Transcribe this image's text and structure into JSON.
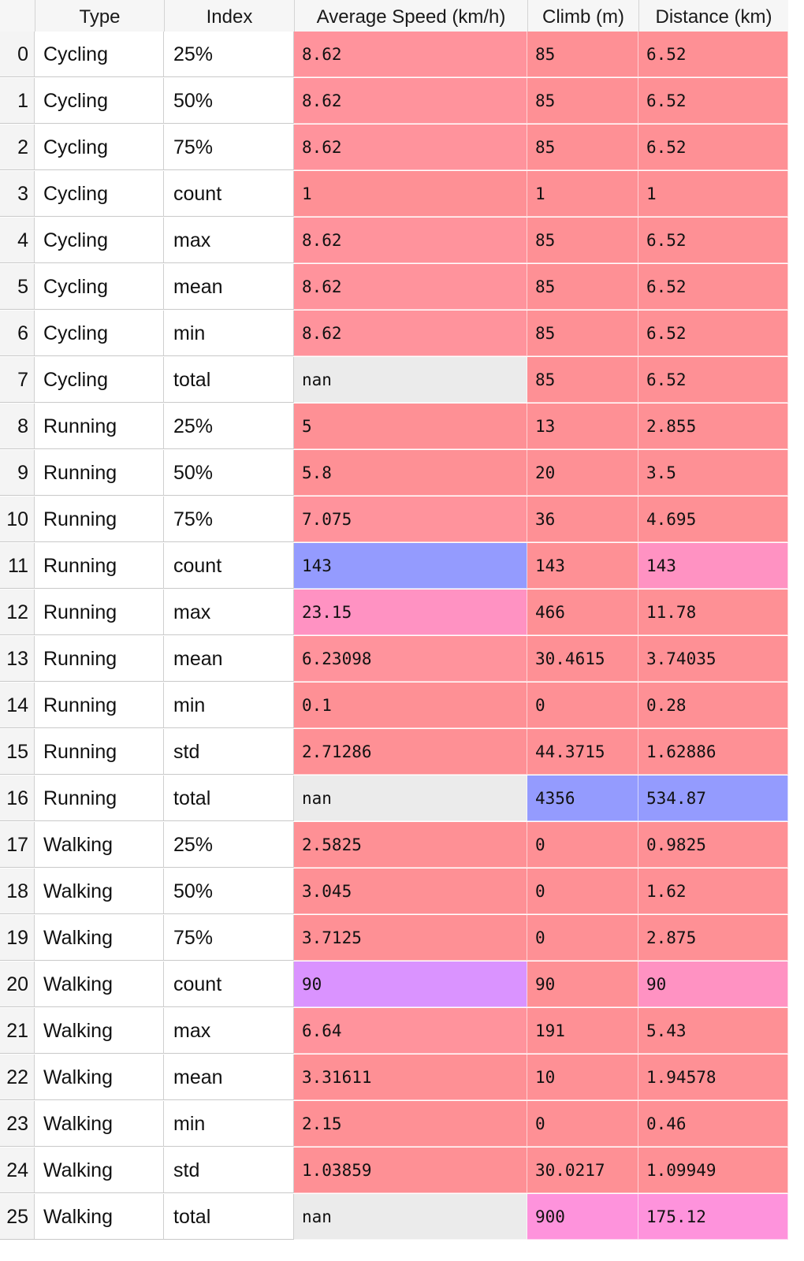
{
  "colors": {
    "header_bg": "#f6f6f6",
    "index_col_bg": "#f4f4f4",
    "low": "#ff939c",
    "low_alt": "#fe9095",
    "mid_pink": "#ff92c2",
    "mid_magenta": "#fe93dc",
    "mid_violet": "#da93ff",
    "high_blue": "#949bfe",
    "nan": "#ebebeb"
  },
  "table": {
    "columns": [
      "Type",
      "Index",
      "Average Speed (km/h)",
      "Climb (m)",
      "Distance (km)"
    ],
    "rows": [
      {
        "idx": "0",
        "type": "Cycling",
        "index": "25%",
        "speed": "8.62",
        "climb": "85",
        "distance": "6.52",
        "speed_color": "#ff939c",
        "climb_color": "#fe9095",
        "distance_color": "#fe9095"
      },
      {
        "idx": "1",
        "type": "Cycling",
        "index": "50%",
        "speed": "8.62",
        "climb": "85",
        "distance": "6.52",
        "speed_color": "#ff939c",
        "climb_color": "#fe9095",
        "distance_color": "#fe9095"
      },
      {
        "idx": "2",
        "type": "Cycling",
        "index": "75%",
        "speed": "8.62",
        "climb": "85",
        "distance": "6.52",
        "speed_color": "#ff939c",
        "climb_color": "#fe9095",
        "distance_color": "#fe9095"
      },
      {
        "idx": "3",
        "type": "Cycling",
        "index": "count",
        "speed": "1",
        "climb": "1",
        "distance": "1",
        "speed_color": "#fe9095",
        "climb_color": "#fe9095",
        "distance_color": "#fe9095"
      },
      {
        "idx": "4",
        "type": "Cycling",
        "index": "max",
        "speed": "8.62",
        "climb": "85",
        "distance": "6.52",
        "speed_color": "#ff939c",
        "climb_color": "#fe9095",
        "distance_color": "#fe9095"
      },
      {
        "idx": "5",
        "type": "Cycling",
        "index": "mean",
        "speed": "8.62",
        "climb": "85",
        "distance": "6.52",
        "speed_color": "#ff939c",
        "climb_color": "#fe9095",
        "distance_color": "#fe9095"
      },
      {
        "idx": "6",
        "type": "Cycling",
        "index": "min",
        "speed": "8.62",
        "climb": "85",
        "distance": "6.52",
        "speed_color": "#ff939c",
        "climb_color": "#fe9095",
        "distance_color": "#fe9095"
      },
      {
        "idx": "7",
        "type": "Cycling",
        "index": "total",
        "speed": "nan",
        "climb": "85",
        "distance": "6.52",
        "speed_color": "#ebebeb",
        "climb_color": "#fe9095",
        "distance_color": "#fe9095"
      },
      {
        "idx": "8",
        "type": "Running",
        "index": "25%",
        "speed": "5",
        "climb": "13",
        "distance": "2.855",
        "speed_color": "#fe9095",
        "climb_color": "#fe9095",
        "distance_color": "#fe9095"
      },
      {
        "idx": "9",
        "type": "Running",
        "index": "50%",
        "speed": "5.8",
        "climb": "20",
        "distance": "3.5",
        "speed_color": "#fe9095",
        "climb_color": "#fe9095",
        "distance_color": "#fe9095"
      },
      {
        "idx": "10",
        "type": "Running",
        "index": "75%",
        "speed": "7.075",
        "climb": "36",
        "distance": "4.695",
        "speed_color": "#ff939c",
        "climb_color": "#fe9095",
        "distance_color": "#fe9095"
      },
      {
        "idx": "11",
        "type": "Running",
        "index": "count",
        "speed": "143",
        "climb": "143",
        "distance": "143",
        "speed_color": "#949bfe",
        "climb_color": "#fe9095",
        "distance_color": "#ff92c2"
      },
      {
        "idx": "12",
        "type": "Running",
        "index": "max",
        "speed": "23.15",
        "climb": "466",
        "distance": "11.78",
        "speed_color": "#ff92c2",
        "climb_color": "#fe9095",
        "distance_color": "#fe9095"
      },
      {
        "idx": "13",
        "type": "Running",
        "index": "mean",
        "speed": "6.23098",
        "climb": "30.4615",
        "distance": "3.74035",
        "speed_color": "#ff939c",
        "climb_color": "#fe9095",
        "distance_color": "#fe9095"
      },
      {
        "idx": "14",
        "type": "Running",
        "index": "min",
        "speed": "0.1",
        "climb": "0",
        "distance": "0.28",
        "speed_color": "#fe9095",
        "climb_color": "#fe9095",
        "distance_color": "#fe9095"
      },
      {
        "idx": "15",
        "type": "Running",
        "index": "std",
        "speed": "2.71286",
        "climb": "44.3715",
        "distance": "1.62886",
        "speed_color": "#fe9095",
        "climb_color": "#fe9095",
        "distance_color": "#fe9095"
      },
      {
        "idx": "16",
        "type": "Running",
        "index": "total",
        "speed": "nan",
        "climb": "4356",
        "distance": "534.87",
        "speed_color": "#ebebeb",
        "climb_color": "#949bfe",
        "distance_color": "#949bfe"
      },
      {
        "idx": "17",
        "type": "Walking",
        "index": "25%",
        "speed": "2.5825",
        "climb": "0",
        "distance": "0.9825",
        "speed_color": "#fe9095",
        "climb_color": "#fe9095",
        "distance_color": "#fe9095"
      },
      {
        "idx": "18",
        "type": "Walking",
        "index": "50%",
        "speed": "3.045",
        "climb": "0",
        "distance": "1.62",
        "speed_color": "#fe9095",
        "climb_color": "#fe9095",
        "distance_color": "#fe9095"
      },
      {
        "idx": "19",
        "type": "Walking",
        "index": "75%",
        "speed": "3.7125",
        "climb": "0",
        "distance": "2.875",
        "speed_color": "#fe9095",
        "climb_color": "#fe9095",
        "distance_color": "#fe9095"
      },
      {
        "idx": "20",
        "type": "Walking",
        "index": "count",
        "speed": "90",
        "climb": "90",
        "distance": "90",
        "speed_color": "#da93ff",
        "climb_color": "#fe9095",
        "distance_color": "#ff92c2"
      },
      {
        "idx": "21",
        "type": "Walking",
        "index": "max",
        "speed": "6.64",
        "climb": "191",
        "distance": "5.43",
        "speed_color": "#ff939c",
        "climb_color": "#fe9095",
        "distance_color": "#fe9095"
      },
      {
        "idx": "22",
        "type": "Walking",
        "index": "mean",
        "speed": "3.31611",
        "climb": "10",
        "distance": "1.94578",
        "speed_color": "#fe9095",
        "climb_color": "#fe9095",
        "distance_color": "#fe9095"
      },
      {
        "idx": "23",
        "type": "Walking",
        "index": "min",
        "speed": "2.15",
        "climb": "0",
        "distance": "0.46",
        "speed_color": "#fe9095",
        "climb_color": "#fe9095",
        "distance_color": "#fe9095"
      },
      {
        "idx": "24",
        "type": "Walking",
        "index": "std",
        "speed": "1.03859",
        "climb": "30.0217",
        "distance": "1.09949",
        "speed_color": "#fe9095",
        "climb_color": "#fe9095",
        "distance_color": "#fe9095"
      },
      {
        "idx": "25",
        "type": "Walking",
        "index": "total",
        "speed": "nan",
        "climb": "900",
        "distance": "175.12",
        "speed_color": "#ebebeb",
        "climb_color": "#fe93dc",
        "distance_color": "#fe93dc"
      }
    ]
  }
}
